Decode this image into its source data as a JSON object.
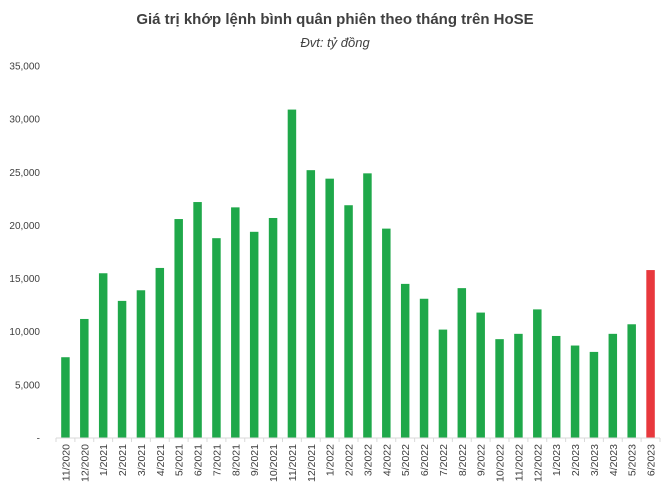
{
  "chart_data": {
    "type": "bar",
    "title": "Giá trị khớp lệnh bình quân phiên theo tháng trên HoSE",
    "subtitle": "Đvt: tỷ đồng",
    "xlabel": "",
    "ylabel": "",
    "ylim": [
      0,
      35000
    ],
    "ytick_values": [
      0,
      5000,
      10000,
      15000,
      20000,
      25000,
      30000,
      35000
    ],
    "ytick_labels": [
      "-",
      "5,000",
      "10,000",
      "15,000",
      "20,000",
      "25,000",
      "30,000",
      "35,000"
    ],
    "grid": false,
    "legend": "none",
    "colors": {
      "default": "#1fa84a",
      "highlight": "#e8383d",
      "axis": "#d9d9d9",
      "text": "#404040"
    },
    "highlight_index": 31,
    "categories": [
      "11/2020",
      "12/2020",
      "1/2021",
      "2/2021",
      "3/2021",
      "4/2021",
      "5/2021",
      "6/2021",
      "7/2021",
      "8/2021",
      "9/2021",
      "10/2021",
      "11/2021",
      "12/2021",
      "1/2022",
      "2/2022",
      "3/2022",
      "4/2022",
      "5/2022",
      "6/2022",
      "7/2022",
      "8/2022",
      "9/2022",
      "10/2022",
      "11/2022",
      "12/2022",
      "1/2023",
      "2/2023",
      "3/2023",
      "4/2023",
      "5/2023",
      "6/2023"
    ],
    "values": [
      7600,
      11200,
      15500,
      12900,
      13900,
      16000,
      20600,
      22200,
      18800,
      21700,
      19400,
      20700,
      30900,
      25200,
      24400,
      21900,
      24900,
      19700,
      14500,
      13100,
      10200,
      14100,
      11800,
      9300,
      9800,
      12100,
      9600,
      8700,
      8100,
      9800,
      10700,
      15800
    ]
  }
}
